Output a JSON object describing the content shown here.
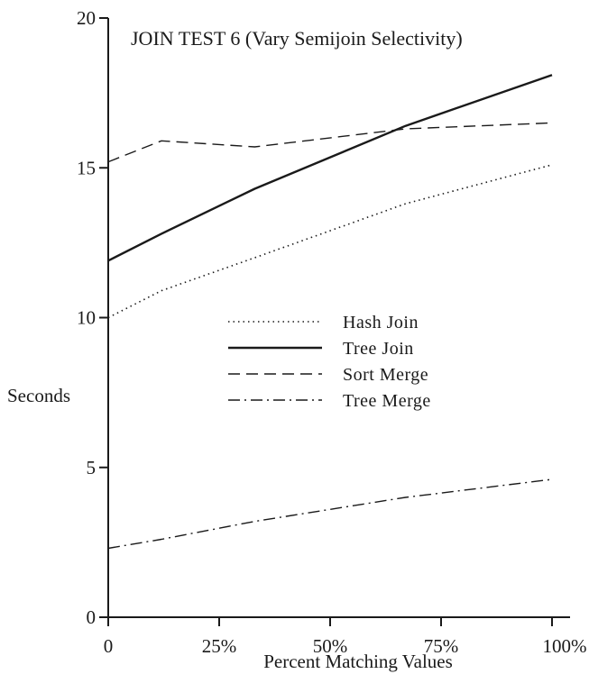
{
  "chart_data": {
    "type": "line",
    "title": "JOIN TEST 6  (Vary Semijoin Selectivity)",
    "xlabel": "Percent Matching Values",
    "ylabel": "Seconds",
    "xlim": [
      0,
      100
    ],
    "ylim": [
      0,
      20
    ],
    "x_ticks": [
      {
        "value": 0,
        "label": "0"
      },
      {
        "value": 25,
        "label": "25%"
      },
      {
        "value": 50,
        "label": "50%"
      },
      {
        "value": 75,
        "label": "75%"
      },
      {
        "value": 100,
        "label": "100%"
      }
    ],
    "y_ticks": [
      {
        "value": 0,
        "label": "0"
      },
      {
        "value": 5,
        "label": "5"
      },
      {
        "value": 10,
        "label": "10"
      },
      {
        "value": 15,
        "label": "15"
      },
      {
        "value": 20,
        "label": "20"
      }
    ],
    "grid": false,
    "legend_position": "center",
    "series": [
      {
        "name": "Hash Join",
        "style": "dotted",
        "color": "#1a1a1a",
        "x": [
          0,
          12,
          33,
          67,
          100
        ],
        "y": [
          10.0,
          10.9,
          12.0,
          13.8,
          15.1
        ]
      },
      {
        "name": "Tree Join",
        "style": "solid",
        "color": "#1a1a1a",
        "x": [
          0,
          12,
          33,
          67,
          100
        ],
        "y": [
          11.9,
          12.8,
          14.3,
          16.4,
          18.1
        ]
      },
      {
        "name": "Sort Merge",
        "style": "dashed",
        "color": "#1a1a1a",
        "x": [
          0,
          12,
          33,
          67,
          100
        ],
        "y": [
          15.2,
          15.9,
          15.7,
          16.3,
          16.5
        ]
      },
      {
        "name": "Tree Merge",
        "style": "dash-dot",
        "color": "#1a1a1a",
        "x": [
          0,
          12,
          33,
          67,
          100
        ],
        "y": [
          2.3,
          2.6,
          3.2,
          4.0,
          4.6
        ]
      }
    ]
  }
}
